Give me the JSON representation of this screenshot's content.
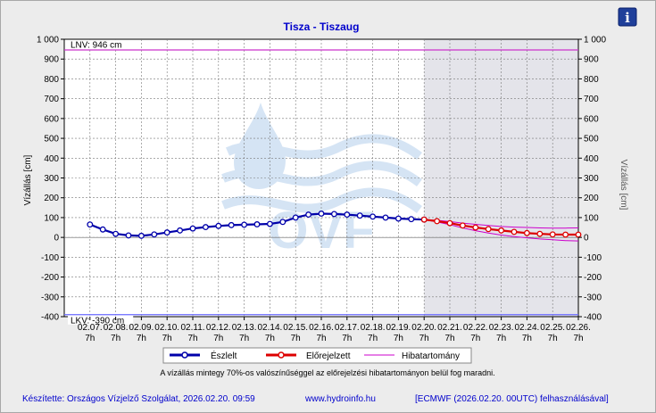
{
  "chart_data": {
    "type": "line",
    "title": "Tisza - Tiszaug",
    "ylabel_left": "Vízállás [cm]",
    "ylabel_right": "Vízállás [cm]",
    "ylim": [
      -400,
      1000
    ],
    "y_ticks": [
      -400,
      -300,
      -200,
      -100,
      0,
      100,
      200,
      300,
      400,
      500,
      600,
      700,
      800,
      900,
      1000
    ],
    "y_tick_labels": [
      "-400",
      "-300",
      "-200",
      "-100",
      "0",
      "100",
      "200",
      "300",
      "400",
      "500",
      "600",
      "700",
      "800",
      "900",
      "1 000"
    ],
    "x_categories": [
      "02.07.",
      "02.08.",
      "02.09.",
      "02.10.",
      "02.11.",
      "02.12.",
      "02.13.",
      "02.14.",
      "02.15.",
      "02.16.",
      "02.17.",
      "02.18.",
      "02.19.",
      "02.20.",
      "02.21.",
      "02.22.",
      "02.23.",
      "02.24.",
      "02.25.",
      "02.26."
    ],
    "x_sub_label": "7h",
    "grid": true,
    "forecast_start_category": "02.20.",
    "reference_lines": [
      {
        "name": "LNV",
        "label": "LNV: 946 cm",
        "value": 946,
        "color": "#cc33cc"
      },
      {
        "name": "LKV",
        "label": "LKV: -390 cm",
        "value": -390,
        "color": "#6a6aff"
      }
    ],
    "series": [
      {
        "name": "Észlelt",
        "color": "#0000aa",
        "x": [
          0,
          0.5,
          1,
          1.5,
          2,
          2.5,
          3,
          3.5,
          4,
          4.5,
          5,
          5.5,
          6,
          6.5,
          7,
          7.5,
          8,
          8.5,
          9,
          9.5,
          10,
          10.5,
          11,
          11.5,
          12,
          12.5,
          13
        ],
        "values": [
          65,
          40,
          18,
          10,
          8,
          15,
          25,
          35,
          45,
          52,
          58,
          62,
          64,
          66,
          68,
          78,
          100,
          115,
          120,
          118,
          115,
          110,
          105,
          100,
          95,
          92,
          90
        ]
      },
      {
        "name": "Előrejelzett",
        "color": "#dd0000",
        "x": [
          13,
          13.5,
          14,
          14.5,
          15,
          15.5,
          16,
          16.5,
          17,
          17.5,
          18,
          18.5,
          19
        ],
        "values": [
          90,
          82,
          72,
          60,
          50,
          42,
          35,
          28,
          22,
          18,
          15,
          14,
          14
        ]
      },
      {
        "name": "Hibatartomány",
        "color": "#cc00cc",
        "x": [
          13,
          13.5,
          14,
          14.5,
          15,
          15.5,
          16,
          16.5,
          17,
          17.5,
          18,
          18.5,
          19
        ],
        "upper": [
          90,
          86,
          80,
          72,
          66,
          60,
          55,
          52,
          50,
          48,
          47,
          47,
          48
        ],
        "lower": [
          90,
          78,
          64,
          48,
          34,
          22,
          12,
          4,
          -2,
          -8,
          -12,
          -16,
          -18
        ]
      }
    ],
    "legend": [
      "Észlelt",
      "Előrejelzett",
      "Hibatartomány"
    ],
    "legend_placement": "bottom-center"
  },
  "note": "A vízállás mintegy 70%-os valószínűséggel az előrejelzési hibatartományon belül fog maradni.",
  "footer": {
    "credit": "Készítette: Országos Vízjelző Szolgálat, 2026.02.20. 09:59",
    "website": "www.hydroinfo.hu",
    "model": "[ECMWF (2026.02.20. 00UTC) felhasználásával]"
  },
  "watermark": "OVF",
  "icons": {
    "info": "info-icon"
  }
}
